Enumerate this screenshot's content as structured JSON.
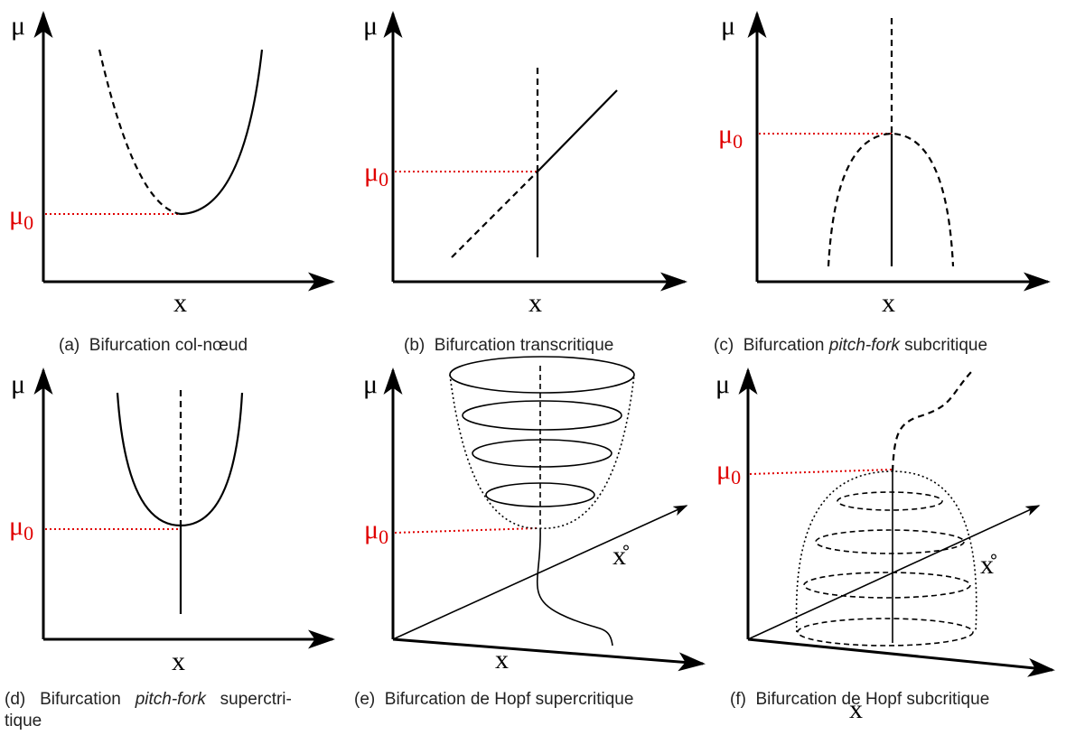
{
  "panels": [
    {
      "label": "(a)",
      "caption": [
        "Bifurcation col-nœud"
      ],
      "y_axis": "μ",
      "x_axis": "x",
      "mu0": {
        "symbol": "μ",
        "sub": "0"
      }
    },
    {
      "label": "(b)",
      "caption": [
        "Bifurcation transcritique"
      ],
      "y_axis": "μ",
      "x_axis": "x",
      "mu0": {
        "symbol": "μ",
        "sub": "0"
      }
    },
    {
      "label": "(c)",
      "caption": [
        "Bifurcation ",
        "pitch-fork",
        " subcritique"
      ],
      "y_axis": "μ",
      "x_axis": "x",
      "mu0": {
        "symbol": "μ",
        "sub": "0"
      }
    },
    {
      "label": "(d)",
      "caption": [
        "Bifurcation ",
        "pitch-fork",
        " superctri-"
      ],
      "caption_cont": "tique",
      "y_axis": "μ",
      "x_axis": "x",
      "mu0": {
        "symbol": "μ",
        "sub": "0"
      }
    },
    {
      "label": "(e)",
      "caption": [
        "Bifurcation de Hopf supercritique"
      ],
      "y_axis": "μ",
      "x_axis": "x",
      "depth_axis": "x̊",
      "mu0": {
        "symbol": "μ",
        "sub": "0"
      }
    },
    {
      "label": "(f)",
      "caption": [
        "Bifurcation de Hopf subcritique"
      ],
      "y_axis": "μ",
      "x_axis": "x",
      "depth_axis": "x̊",
      "mu0": {
        "symbol": "μ",
        "sub": "0"
      }
    }
  ]
}
